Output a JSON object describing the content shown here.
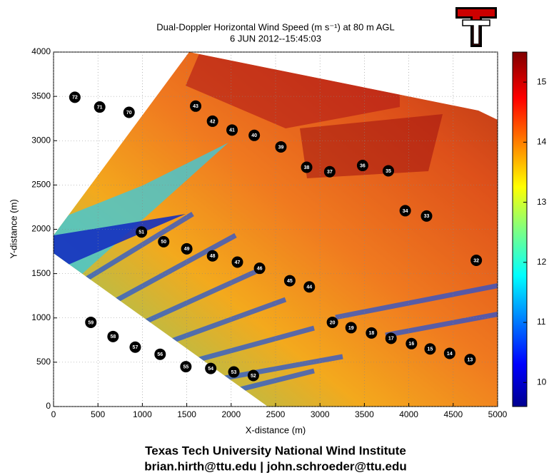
{
  "chart_data": {
    "type": "scatter",
    "title": "Dual-Doppler Horizontal Wind Speed (m s⁻¹) at 80 m AGL",
    "subtitle": "6 JUN 2012--15:45:03",
    "x_label": "X-distance (m)",
    "y_label": "Y-distance (m)",
    "xlim": [
      0,
      5000
    ],
    "ylim": [
      0,
      4000
    ],
    "xticks": [
      0,
      500,
      1000,
      1500,
      2000,
      2500,
      3000,
      3500,
      4000,
      4500,
      5000
    ],
    "yticks": [
      0,
      500,
      1000,
      1500,
      2000,
      2500,
      3000,
      3500,
      4000
    ],
    "grid": true,
    "labels": [
      "72",
      "71",
      "70",
      "43",
      "42",
      "41",
      "40",
      "39",
      "38",
      "37",
      "36",
      "35",
      "34",
      "33",
      "32",
      "51",
      "50",
      "49",
      "48",
      "47",
      "46",
      "45",
      "44",
      "59",
      "58",
      "57",
      "56",
      "55",
      "54",
      "53",
      "52",
      "20",
      "19",
      "18",
      "17",
      "16",
      "15",
      "14",
      "13"
    ],
    "x": [
      240,
      520,
      850,
      1600,
      1790,
      2010,
      2260,
      2560,
      2850,
      3110,
      3480,
      3770,
      3960,
      4200,
      4760,
      990,
      1240,
      1500,
      1790,
      2070,
      2320,
      2660,
      2880,
      420,
      670,
      920,
      1200,
      1490,
      1770,
      2030,
      2250,
      3140,
      3350,
      3580,
      3800,
      4030,
      4240,
      4460,
      4690
    ],
    "y": [
      3490,
      3380,
      3320,
      3390,
      3220,
      3120,
      3060,
      2930,
      2700,
      2650,
      2720,
      2660,
      2210,
      2150,
      1650,
      1970,
      1860,
      1780,
      1700,
      1630,
      1560,
      1420,
      1350,
      950,
      790,
      670,
      590,
      450,
      430,
      390,
      350,
      950,
      890,
      830,
      770,
      710,
      650,
      600,
      530
    ],
    "colorbar": {
      "clim": [
        9.6,
        15.5
      ],
      "ticks": [
        10,
        11,
        12,
        13,
        14,
        15
      ]
    },
    "footer": [
      "Texas Tech University National Wind Institute",
      "brian.hirth@ttu.edu | john.schroeder@ttu.edu"
    ]
  }
}
